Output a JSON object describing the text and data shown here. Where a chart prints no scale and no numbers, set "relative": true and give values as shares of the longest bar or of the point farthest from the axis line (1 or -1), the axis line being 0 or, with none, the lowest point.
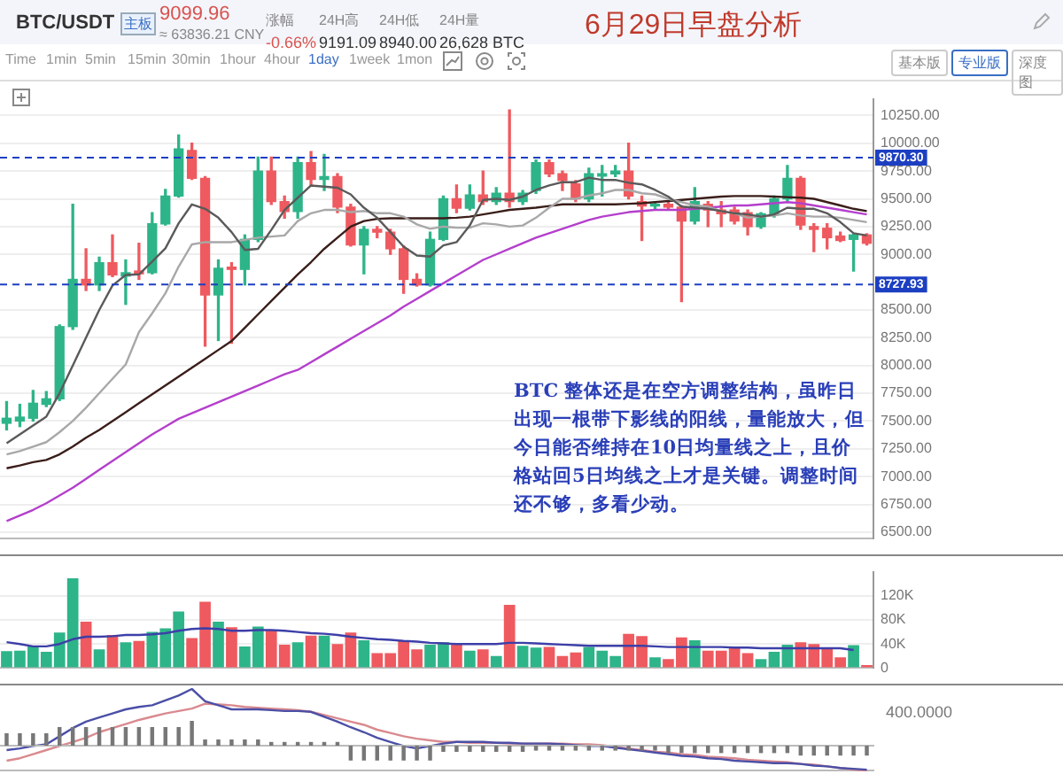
{
  "chart_data": [
    {
      "type": "candlestick",
      "title": "6月29日早盘分析",
      "categories": [
        null,
        null,
        null,
        null,
        null,
        null,
        null,
        null,
        null,
        null,
        null,
        null,
        null,
        null,
        null,
        null,
        null,
        null,
        null,
        null,
        null,
        null,
        null,
        null,
        null,
        null,
        null,
        null,
        null,
        null,
        null,
        null,
        null,
        null,
        null,
        null,
        null,
        null,
        null,
        null,
        null,
        null,
        null,
        null,
        null,
        null,
        null,
        null,
        null,
        null,
        null,
        null,
        null,
        null,
        null,
        null,
        null,
        null,
        null,
        null,
        null,
        null,
        null,
        null,
        null,
        null
      ],
      "ohlc": [
        [
          7480,
          7675,
          7420,
          7525
        ],
        [
          7500,
          7650,
          7450,
          7535
        ],
        [
          7525,
          7775,
          7500,
          7660
        ],
        [
          7650,
          7765,
          7630,
          7700
        ],
        [
          7700,
          8365,
          7685,
          8350
        ],
        [
          8350,
          9450,
          8325,
          8775
        ],
        [
          8775,
          9050,
          8675,
          8725
        ],
        [
          8725,
          8975,
          8675,
          8925
        ],
        [
          8925,
          9175,
          8800,
          8815
        ],
        [
          8805,
          8950,
          8550,
          8835
        ],
        [
          8850,
          9100,
          8775,
          8825
        ],
        [
          8835,
          9375,
          8825,
          9275
        ],
        [
          9275,
          9585,
          9265,
          9525
        ],
        [
          9525,
          10075,
          9515,
          9950
        ],
        [
          9935,
          10000,
          9675,
          9685
        ],
        [
          9685,
          9700,
          8175,
          8635
        ],
        [
          8635,
          8950,
          8225,
          8875
        ],
        [
          8885,
          8925,
          8200,
          8865
        ],
        [
          8865,
          9175,
          8725,
          9135
        ],
        [
          9135,
          9875,
          9115,
          9750
        ],
        [
          9750,
          9875,
          9450,
          9475
        ],
        [
          9475,
          9525,
          9325,
          9385
        ],
        [
          9385,
          9875,
          9325,
          9825
        ],
        [
          9825,
          9925,
          9625,
          9675
        ],
        [
          9675,
          9900,
          9575,
          9700
        ],
        [
          9700,
          9725,
          9375,
          9425
        ],
        [
          9425,
          9450,
          9075,
          9085
        ],
        [
          9085,
          9250,
          8825,
          9225
        ],
        [
          9225,
          9250,
          9150,
          9200
        ],
        [
          9200,
          9225,
          9000,
          9050
        ],
        [
          9050,
          9075,
          8650,
          8775
        ],
        [
          8775,
          8825,
          8715,
          8725
        ],
        [
          8725,
          9200,
          8715,
          9135
        ],
        [
          9135,
          9525,
          9125,
          9500
        ],
        [
          9500,
          9625,
          9375,
          9415
        ],
        [
          9415,
          9625,
          9400,
          9535
        ],
        [
          9535,
          9750,
          9450,
          9475
        ],
        [
          9475,
          9600,
          9450,
          9550
        ],
        [
          9550,
          10300,
          9425,
          9475
        ],
        [
          9475,
          9575,
          9450,
          9550
        ],
        [
          9575,
          9850,
          9550,
          9825
        ],
        [
          9825,
          9850,
          9700,
          9725
        ],
        [
          9725,
          9750,
          9575,
          9665
        ],
        [
          9635,
          9665,
          9475,
          9500
        ],
        [
          9500,
          9775,
          9475,
          9725
        ],
        [
          9705,
          9800,
          9525,
          9725
        ],
        [
          9725,
          9800,
          9700,
          9750
        ],
        [
          9750,
          10000,
          9500,
          9525
        ],
        [
          9475,
          9525,
          9125,
          9435
        ],
        [
          9435,
          9475,
          9400,
          9450
        ],
        [
          9450,
          9475,
          9400,
          9425
        ],
        [
          9425,
          9440,
          8575,
          9300
        ],
        [
          9300,
          9600,
          9275,
          9475
        ],
        [
          9450,
          9475,
          9250,
          9400
        ],
        [
          9400,
          9475,
          9250,
          9365
        ],
        [
          9400,
          9425,
          9275,
          9300
        ],
        [
          9375,
          9400,
          9175,
          9250
        ],
        [
          9250,
          9375,
          9235,
          9365
        ],
        [
          9365,
          9525,
          9335,
          9500
        ],
        [
          9500,
          9800,
          9485,
          9685
        ],
        [
          9685,
          9700,
          9225,
          9265
        ],
        [
          9250,
          9275,
          9025,
          9225
        ],
        [
          9235,
          9275,
          9050,
          9150
        ],
        [
          9165,
          9200,
          9115,
          9125
        ],
        [
          9135,
          9185,
          8850,
          9175
        ],
        [
          9175,
          9185,
          9085,
          9100
        ]
      ],
      "colors": [
        "#2eb489",
        "#2eb489",
        "#2eb489",
        "#2eb489",
        "#2eb489",
        "#2eb489",
        "#ee5a5f",
        "#2eb489",
        "#ee5a5f",
        "#2eb489",
        "#ee5a5f",
        "#2eb489",
        "#2eb489",
        "#2eb489",
        "#ee5a5f",
        "#ee5a5f",
        "#2eb489",
        "#ee5a5f",
        "#2eb489",
        "#2eb489",
        "#ee5a5f",
        "#ee5a5f",
        "#2eb489",
        "#ee5a5f",
        "#2eb489",
        "#ee5a5f",
        "#ee5a5f",
        "#2eb489",
        "#ee5a5f",
        "#ee5a5f",
        "#ee5a5f",
        "#ee5a5f",
        "#2eb489",
        "#2eb489",
        "#ee5a5f",
        "#2eb489",
        "#ee5a5f",
        "#2eb489",
        "#ee5a5f",
        "#2eb489",
        "#2eb489",
        "#ee5a5f",
        "#ee5a5f",
        "#ee5a5f",
        "#2eb489",
        "#2eb489",
        "#2eb489",
        "#ee5a5f",
        "#ee5a5f",
        "#2eb489",
        "#ee5a5f",
        "#ee5a5f",
        "#2eb489",
        "#ee5a5f",
        "#ee5a5f",
        "#ee5a5f",
        "#ee5a5f",
        "#2eb489",
        "#2eb489",
        "#2eb489",
        "#ee5a5f",
        "#ee5a5f",
        "#ee5a5f",
        "#ee5a5f",
        "#2eb489",
        "#ee5a5f"
      ],
      "series": [
        {
          "type": "line",
          "color": "#5a5a5a",
          "values": [
            7300,
            7380,
            7460,
            7540,
            7750,
            8000,
            8250,
            8500,
            8720,
            8815,
            8820,
            8935,
            9055,
            9280,
            9450,
            9410,
            9330,
            9200,
            9040,
            9050,
            9220,
            9400,
            9510,
            9620,
            9610,
            9600,
            9540,
            9420,
            9330,
            9200,
            9070,
            8990,
            8980,
            9080,
            9110,
            9260,
            9490,
            9500,
            9490,
            9520,
            9580,
            9620,
            9650,
            9650,
            9690,
            9670,
            9670,
            9645,
            9630,
            9580,
            9520,
            9430,
            9420,
            9410,
            9390,
            9370,
            9360,
            9340,
            9360,
            9420,
            9410,
            9410,
            9370,
            9290,
            9190,
            9170
          ]
        },
        {
          "type": "line",
          "color": "#a8a8a8",
          "values": [
            7200,
            7230,
            7270,
            7310,
            7400,
            7500,
            7620,
            7750,
            7880,
            8010,
            8300,
            8470,
            8650,
            8890,
            9090,
            9110,
            9110,
            9110,
            9130,
            9150,
            9160,
            9170,
            9300,
            9370,
            9400,
            9400,
            9380,
            9390,
            9370,
            9370,
            9340,
            9270,
            9230,
            9250,
            9240,
            9240,
            9280,
            9270,
            9250,
            9260,
            9330,
            9420,
            9500,
            9500,
            9530,
            9550,
            9580,
            9580,
            9550,
            9540,
            9500,
            9470,
            9440,
            9430,
            9390,
            9370,
            9330,
            9340,
            9350,
            9370,
            9350,
            9340,
            9340,
            9330,
            9310,
            9290
          ]
        },
        {
          "type": "line",
          "color": "#3a1e1a",
          "values": [
            7075,
            7100,
            7130,
            7150,
            7200,
            7270,
            7350,
            7420,
            7500,
            7580,
            7660,
            7740,
            7820,
            7900,
            7980,
            8060,
            8140,
            8220,
            8340,
            8460,
            8580,
            8700,
            8820,
            8930,
            9050,
            9150,
            9250,
            9300,
            9320,
            9325,
            9325,
            9325,
            9325,
            9325,
            9330,
            9340,
            9360,
            9380,
            9400,
            9410,
            9420,
            9435,
            9450,
            9450,
            9450,
            9450,
            9450,
            9455,
            9460,
            9470,
            9480,
            9490,
            9500,
            9510,
            9520,
            9525,
            9525,
            9525,
            9520,
            9515,
            9510,
            9500,
            9470,
            9440,
            9410,
            9390
          ]
        },
        {
          "type": "line",
          "color": "#b43fcc",
          "values": [
            6600,
            6650,
            6700,
            6760,
            6830,
            6900,
            6980,
            7060,
            7140,
            7220,
            7300,
            7380,
            7450,
            7520,
            7570,
            7620,
            7670,
            7720,
            7770,
            7820,
            7870,
            7920,
            7960,
            8030,
            8100,
            8170,
            8240,
            8310,
            8380,
            8450,
            8530,
            8600,
            8670,
            8740,
            8810,
            8880,
            8950,
            9000,
            9050,
            9100,
            9150,
            9190,
            9230,
            9270,
            9310,
            9340,
            9360,
            9380,
            9390,
            9400,
            9400,
            9400,
            9410,
            9420,
            9430,
            9440,
            9440,
            9450,
            9460,
            9470,
            9460,
            9440,
            9420,
            9400,
            9380,
            9360
          ]
        }
      ],
      "ylim": [
        6440,
        10400
      ],
      "yticks": [
        {
          "value": 6500,
          "label": "6500.00"
        },
        {
          "value": 6750,
          "label": "6750.00"
        },
        {
          "value": 7000,
          "label": "7000.00"
        },
        {
          "value": 7250,
          "label": "7250.00"
        },
        {
          "value": 7500,
          "label": "7500.00"
        },
        {
          "value": 7750,
          "label": "7750.00"
        },
        {
          "value": 8000,
          "label": "8000.00"
        },
        {
          "value": 8250,
          "label": "8250.00"
        },
        {
          "value": 8500,
          "label": "8500.00"
        },
        {
          "value": 9000,
          "label": "9000.00"
        },
        {
          "value": 9250,
          "label": "9250.00"
        },
        {
          "value": 9500,
          "label": "9500.00"
        },
        {
          "value": 9750,
          "label": "9750.00"
        },
        {
          "value": 10000,
          "label": "10000.00"
        },
        {
          "value": 10250,
          "label": "10250.00"
        }
      ],
      "ref_lines": [
        {
          "axis": "y",
          "value": 9870.3,
          "label": "9870.30",
          "color": "#1c3fc2",
          "line_style": "dashed"
        },
        {
          "axis": "y",
          "value": 8727.93,
          "label": "8727.93",
          "color": "#1c3fc2",
          "line_style": "dashed"
        }
      ],
      "grid": "y",
      "tick_labels": "y",
      "annotations": [
        "BTC/USDT",
        "主板",
        "9099.96",
        "≈ 63836.21 CNY",
        "涨幅",
        "-0.66%",
        "24H高",
        "9191.09",
        "24H低",
        "8940.00",
        "24H量",
        "26,628 BTC",
        "Time",
        "1min",
        "5min",
        "15min",
        "30min",
        "1hour",
        "4hour",
        "1day",
        "1week",
        "1mon",
        "基本版",
        "专业版",
        "深度图",
        "BTC  整体还是在空方调整结构，虽昨日出现一根带下影线的阳线，量能放大，但今日能否维持在10日均量线之上，且价格站回5日均线之上才是关键。调整时间还不够，多看少动。"
      ]
    },
    {
      "type": "bar",
      "categories": [
        null,
        null,
        null,
        null,
        null,
        null,
        null,
        null,
        null,
        null,
        null,
        null,
        null,
        null,
        null,
        null,
        null,
        null,
        null,
        null,
        null,
        null,
        null,
        null,
        null,
        null,
        null,
        null,
        null,
        null,
        null,
        null,
        null,
        null,
        null,
        null,
        null,
        null,
        null,
        null,
        null,
        null,
        null,
        null,
        null,
        null,
        null,
        null,
        null,
        null,
        null,
        null,
        null,
        null,
        null,
        null,
        null,
        null,
        null,
        null,
        null,
        null,
        null,
        null,
        null,
        null
      ],
      "series": [
        {
          "type": "bar",
          "values": [
            28000,
            29000,
            36000,
            27000,
            59000,
            149000,
            77000,
            31000,
            55000,
            43000,
            45000,
            60000,
            66000,
            94000,
            50000,
            110000,
            77000,
            68000,
            36000,
            69000,
            63000,
            39000,
            43000,
            54000,
            54000,
            40000,
            59000,
            46000,
            25000,
            25000,
            45000,
            31000,
            39000,
            43000,
            40000,
            29000,
            31000,
            20000,
            105000,
            37000,
            34000,
            35000,
            20000,
            26000,
            35000,
            29000,
            20000,
            57000,
            53000,
            18000,
            15000,
            51000,
            46000,
            29000,
            29000,
            34000,
            25000,
            15000,
            27000,
            39000,
            43000,
            40000,
            32000,
            18000,
            38000,
            5000
          ],
          "colors": [
            "#2eb489",
            "#2eb489",
            "#2eb489",
            "#2eb489",
            "#2eb489",
            "#2eb489",
            "#ee5a5f",
            "#2eb489",
            "#ee5a5f",
            "#2eb489",
            "#ee5a5f",
            "#2eb489",
            "#2eb489",
            "#2eb489",
            "#ee5a5f",
            "#ee5a5f",
            "#2eb489",
            "#ee5a5f",
            "#2eb489",
            "#2eb489",
            "#ee5a5f",
            "#ee5a5f",
            "#2eb489",
            "#ee5a5f",
            "#2eb489",
            "#ee5a5f",
            "#ee5a5f",
            "#2eb489",
            "#ee5a5f",
            "#ee5a5f",
            "#ee5a5f",
            "#ee5a5f",
            "#2eb489",
            "#2eb489",
            "#ee5a5f",
            "#2eb489",
            "#ee5a5f",
            "#2eb489",
            "#ee5a5f",
            "#2eb489",
            "#2eb489",
            "#ee5a5f",
            "#ee5a5f",
            "#ee5a5f",
            "#2eb489",
            "#2eb489",
            "#2eb489",
            "#ee5a5f",
            "#ee5a5f",
            "#2eb489",
            "#ee5a5f",
            "#ee5a5f",
            "#2eb489",
            "#ee5a5f",
            "#ee5a5f",
            "#ee5a5f",
            "#ee5a5f",
            "#2eb489",
            "#2eb489",
            "#2eb489",
            "#ee5a5f",
            "#ee5a5f",
            "#ee5a5f",
            "#ee5a5f",
            "#2eb489",
            "#ee5a5f"
          ]
        },
        {
          "type": "line",
          "color": "#3c3fa8",
          "values": [
            43000,
            40000,
            36000,
            36000,
            40000,
            48000,
            52000,
            52000,
            53000,
            55000,
            55000,
            56000,
            58000,
            62000,
            65000,
            66000,
            65000,
            62000,
            62000,
            63000,
            63000,
            62000,
            60000,
            58000,
            57000,
            55000,
            52000,
            50000,
            48000,
            47000,
            45000,
            44000,
            42000,
            41000,
            40000,
            40000,
            40000,
            40000,
            42000,
            42000,
            41000,
            40000,
            39000,
            38000,
            37000,
            37000,
            37000,
            37000,
            37000,
            36000,
            35000,
            35000,
            35000,
            35000,
            35000,
            34000,
            34000,
            33000,
            33000,
            33000,
            33000,
            33000,
            33000,
            33000,
            30000,
            null
          ]
        }
      ],
      "ylim": [
        0,
        160000
      ],
      "yticks": [
        0,
        {
          "value": 40000,
          "label": "40K"
        },
        {
          "value": 80000,
          "label": "80K"
        },
        {
          "value": 120000,
          "label": "120K"
        }
      ],
      "grid": "y",
      "tick_labels": "y"
    },
    {
      "type": "line",
      "relative": true,
      "categories": [
        null,
        null,
        null,
        null,
        null,
        null,
        null,
        null,
        null,
        null,
        null,
        null,
        null,
        null,
        null,
        null,
        null,
        null,
        null,
        null,
        null,
        null,
        null,
        null,
        null,
        null,
        null,
        null,
        null,
        null,
        null,
        null,
        null,
        null,
        null,
        null,
        null,
        null,
        null,
        null,
        null,
        null,
        null,
        null,
        null,
        null,
        null,
        null,
        null,
        null,
        null,
        null,
        null,
        null,
        null,
        null,
        null,
        null,
        null,
        null,
        null,
        null,
        null,
        null,
        null,
        null
      ],
      "series": [
        {
          "type": "line",
          "color": "#4b4fa6",
          "values": [
            0.25,
            0.27,
            0.3,
            0.32,
            0.42,
            0.52,
            0.6,
            0.65,
            0.7,
            0.75,
            0.78,
            0.8,
            0.86,
            0.92,
            1,
            0.85,
            0.8,
            0.75,
            0.75,
            0.75,
            0.74,
            0.73,
            0.73,
            0.72,
            0.66,
            0.6,
            0.53,
            0.47,
            0.4,
            0.35,
            0.3,
            0.27,
            0.3,
            0.33,
            0.35,
            0.35,
            0.35,
            0.34,
            0.34,
            0.33,
            0.33,
            0.33,
            0.32,
            0.31,
            0.3,
            0.3,
            0.28,
            0.26,
            0.24,
            0.22,
            0.2,
            0.18,
            0.17,
            0.15,
            0.14,
            0.12,
            0.11,
            0.1,
            0.09,
            0.09,
            0.08,
            0.06,
            0.05,
            0.03,
            0.02,
            0.01
          ]
        },
        {
          "type": "line",
          "color": "#d98a8f",
          "values": [
            0.12,
            0.15,
            0.2,
            0.25,
            0.3,
            0.35,
            0.4,
            0.47,
            0.52,
            0.57,
            0.62,
            0.66,
            0.7,
            0.73,
            0.76,
            0.82,
            0.81,
            0.8,
            0.78,
            0.77,
            0.76,
            0.75,
            0.74,
            0.72,
            0.68,
            0.64,
            0.6,
            0.56,
            0.5,
            0.46,
            0.42,
            0.39,
            0.37,
            0.35,
            0.35,
            0.34,
            0.34,
            0.34,
            0.33,
            0.33,
            0.33,
            0.33,
            0.33,
            0.32,
            0.32,
            0.31,
            0.29,
            0.27,
            0.25,
            0.23,
            0.22,
            0.2,
            0.19,
            0.17,
            0.16,
            0.15,
            0.13,
            0.12,
            0.11,
            0.1,
            0.08,
            0.07,
            0.05,
            0.03,
            0.01,
            0
          ]
        }
      ],
      "annotations": [
        "400.0000"
      ]
    },
    {
      "type": "bar",
      "relative": true,
      "categories": [
        null,
        null,
        null,
        null,
        null,
        null,
        null,
        null,
        null,
        null,
        null,
        null,
        null,
        null,
        null,
        null,
        null,
        null,
        null,
        null,
        null,
        null,
        null,
        null,
        null,
        null,
        null,
        null,
        null,
        null,
        null,
        null,
        null,
        null,
        null,
        null,
        null,
        null,
        null,
        null,
        null,
        null,
        null,
        null,
        null,
        null,
        null,
        null,
        null,
        null,
        null,
        null,
        null,
        null,
        null,
        null,
        null,
        null,
        null,
        null,
        null,
        null,
        null,
        null,
        null,
        null
      ],
      "series": [
        {
          "type": "bar",
          "color": "#777777",
          "values": [
            0.5,
            0.5,
            0.5,
            0.5,
            0.75,
            0.75,
            0.75,
            0.75,
            0.75,
            0.75,
            0.75,
            0.75,
            0.75,
            0.75,
            1,
            0.25,
            0.25,
            0.25,
            0.25,
            0.25,
            0.15,
            0.15,
            0.15,
            0.15,
            0.15,
            0.15,
            -0.6,
            -0.6,
            -0.6,
            -0.6,
            -0.6,
            -0.6,
            -0.6,
            -0.25,
            -0.25,
            -0.25,
            -0.25,
            -0.25,
            -0.25,
            -0.25,
            -0.2,
            -0.2,
            -0.2,
            -0.2,
            -0.2,
            -0.2,
            -0.2,
            -0.2,
            -0.2,
            -0.2,
            -0.3,
            -0.3,
            -0.3,
            -0.3,
            -0.3,
            -0.3,
            -0.3,
            -0.3,
            -0.3,
            -0.3,
            -0.4,
            -0.4,
            -0.4,
            -0.4,
            -0.4,
            -0.4
          ]
        }
      ]
    }
  ]
}
